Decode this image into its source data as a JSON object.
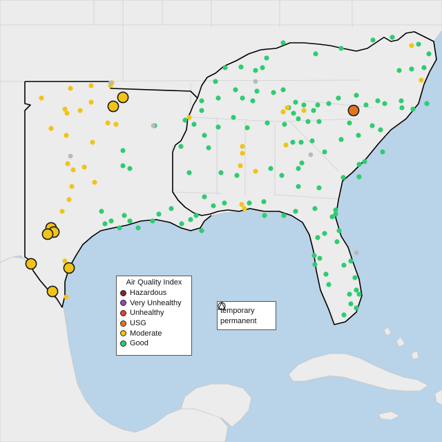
{
  "map": {
    "colors": {
      "water": "#b9d3e8",
      "land": "#ececec",
      "land_border": "#c8c8c8",
      "region_outline": "#000000",
      "aqi": {
        "Hazardous": "#7e2a2a",
        "Very Unhealthy": "#8f4fb0",
        "Unhealthy": "#e5432d",
        "USG": "#e2751f",
        "Moderate": "#f2c318",
        "Good": "#2ecc71",
        "No data": "#b9b9b9"
      }
    }
  },
  "legend": {
    "title": "Air Quality Index",
    "categories": [
      {
        "label": "Hazardous",
        "color": "#7e2a2a"
      },
      {
        "label": "Very Unhealthy",
        "color": "#8f4fb0"
      },
      {
        "label": "Unhealthy",
        "color": "#e5432d"
      },
      {
        "label": "USG",
        "color": "#e2751f"
      },
      {
        "label": "Moderate",
        "color": "#f2c318"
      },
      {
        "label": "Good",
        "color": "#2ecc71"
      }
    ]
  },
  "shape_legend": {
    "temporary": "temporary",
    "permanent": "permanent"
  }
}
